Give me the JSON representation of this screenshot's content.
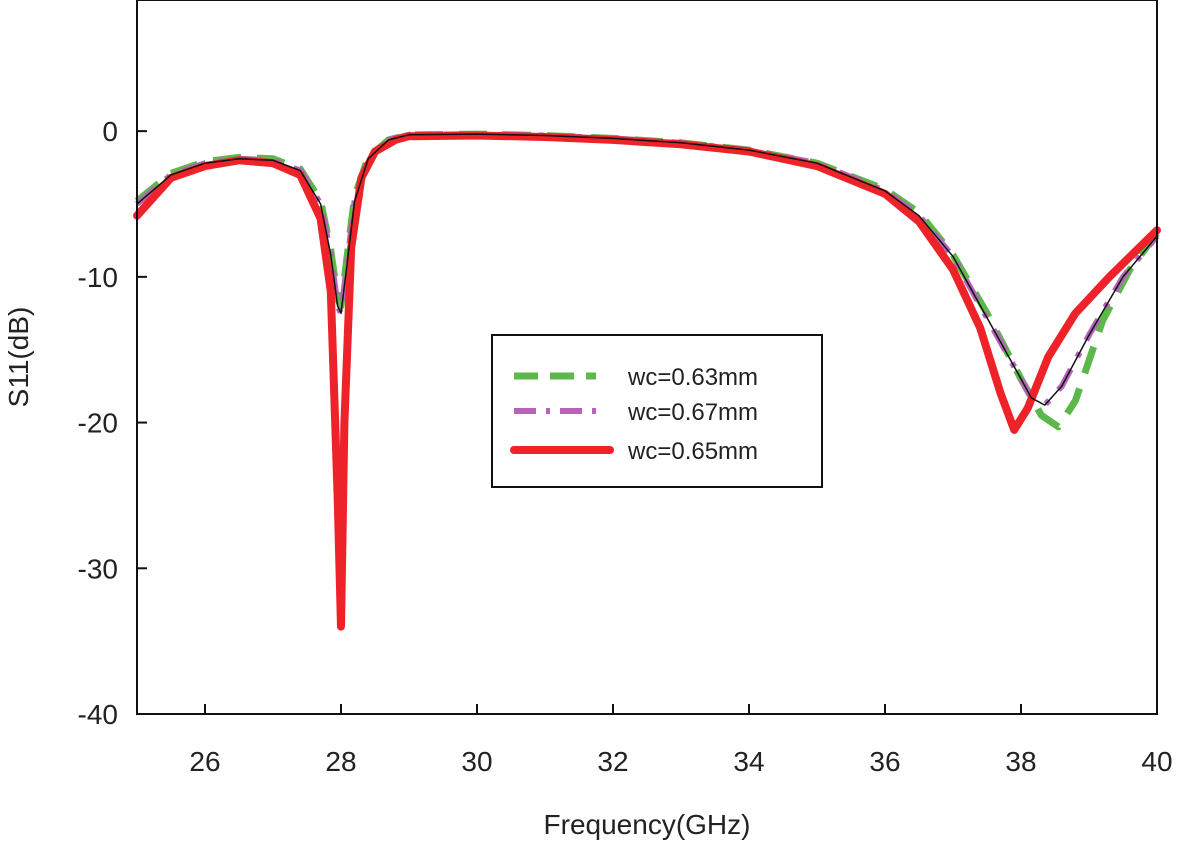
{
  "chart_data": {
    "type": "line",
    "title": "",
    "xlabel": "Frequency(GHz)",
    "ylabel": "S11(dB)",
    "xlim": [
      25,
      40
    ],
    "ylim": [
      -40,
      9
    ],
    "xticks": [
      26,
      28,
      30,
      32,
      34,
      36,
      38,
      40
    ],
    "yticks": [
      0,
      -10,
      -20,
      -30,
      -40
    ],
    "xtick_labels": [
      "26",
      "28",
      "30",
      "32",
      "34",
      "36",
      "38",
      "40"
    ],
    "ytick_labels": [
      "0",
      "-10",
      "-20",
      "-30",
      "-40"
    ],
    "grid": false,
    "legend_position": "center",
    "series": [
      {
        "name": "wc=0.63mm",
        "color": "#5cb84a",
        "style": "dashed",
        "points": [
          [
            25,
            -4.8
          ],
          [
            25.5,
            -2.9
          ],
          [
            26,
            -2.1
          ],
          [
            26.5,
            -1.8
          ],
          [
            27,
            -1.9
          ],
          [
            27.4,
            -2.6
          ],
          [
            27.7,
            -4.8
          ],
          [
            27.85,
            -8.2
          ],
          [
            27.95,
            -11.5
          ],
          [
            28.0,
            -12
          ],
          [
            28.08,
            -9
          ],
          [
            28.2,
            -4.5
          ],
          [
            28.4,
            -1.8
          ],
          [
            28.7,
            -0.6
          ],
          [
            29,
            -0.25
          ],
          [
            30,
            -0.2
          ],
          [
            31,
            -0.3
          ],
          [
            32,
            -0.5
          ],
          [
            33,
            -0.8
          ],
          [
            34,
            -1.3
          ],
          [
            35,
            -2.2
          ],
          [
            36,
            -4.0
          ],
          [
            36.5,
            -5.6
          ],
          [
            37,
            -8.5
          ],
          [
            37.5,
            -12.5
          ],
          [
            38,
            -17
          ],
          [
            38.3,
            -19.5
          ],
          [
            38.55,
            -20.3
          ],
          [
            38.8,
            -18.5
          ],
          [
            39.2,
            -13
          ],
          [
            39.6,
            -9.5
          ],
          [
            40,
            -7
          ]
        ]
      },
      {
        "name": "wc=0.67mm",
        "color": "#b565b8",
        "style": "dash-dot",
        "points": [
          [
            25,
            -5
          ],
          [
            25.5,
            -3
          ],
          [
            26,
            -2.2
          ],
          [
            26.5,
            -1.9
          ],
          [
            27,
            -2.0
          ],
          [
            27.4,
            -2.7
          ],
          [
            27.7,
            -5
          ],
          [
            27.85,
            -8.5
          ],
          [
            27.95,
            -12
          ],
          [
            28.0,
            -12.5
          ],
          [
            28.08,
            -9.5
          ],
          [
            28.2,
            -4.8
          ],
          [
            28.4,
            -1.9
          ],
          [
            28.7,
            -0.6
          ],
          [
            29,
            -0.25
          ],
          [
            30,
            -0.2
          ],
          [
            31,
            -0.3
          ],
          [
            32,
            -0.5
          ],
          [
            33,
            -0.8
          ],
          [
            34,
            -1.3
          ],
          [
            35,
            -2.2
          ],
          [
            36,
            -4.1
          ],
          [
            36.5,
            -5.8
          ],
          [
            37,
            -8.6
          ],
          [
            37.5,
            -12.8
          ],
          [
            38,
            -17
          ],
          [
            38.15,
            -18.3
          ],
          [
            38.35,
            -18.8
          ],
          [
            38.6,
            -17.5
          ],
          [
            39,
            -14
          ],
          [
            39.5,
            -10
          ],
          [
            40,
            -7.2
          ]
        ]
      },
      {
        "name": "wc=0.65mm",
        "color": "#ee2229",
        "style": "solid",
        "points": [
          [
            25,
            -5.8
          ],
          [
            25.5,
            -3.2
          ],
          [
            26,
            -2.4
          ],
          [
            26.5,
            -2.0
          ],
          [
            27,
            -2.2
          ],
          [
            27.4,
            -3
          ],
          [
            27.7,
            -6
          ],
          [
            27.85,
            -11
          ],
          [
            27.95,
            -25
          ],
          [
            28.0,
            -34
          ],
          [
            28.05,
            -20
          ],
          [
            28.15,
            -8
          ],
          [
            28.3,
            -3.2
          ],
          [
            28.5,
            -1.4
          ],
          [
            28.8,
            -0.6
          ],
          [
            29,
            -0.35
          ],
          [
            30,
            -0.3
          ],
          [
            31,
            -0.4
          ],
          [
            32,
            -0.6
          ],
          [
            33,
            -0.9
          ],
          [
            34,
            -1.4
          ],
          [
            35,
            -2.4
          ],
          [
            36,
            -4.3
          ],
          [
            36.5,
            -6.2
          ],
          [
            37,
            -9.5
          ],
          [
            37.4,
            -13.5
          ],
          [
            37.7,
            -18
          ],
          [
            37.9,
            -20.5
          ],
          [
            38.1,
            -19
          ],
          [
            38.4,
            -15.5
          ],
          [
            38.8,
            -12.5
          ],
          [
            39.3,
            -10
          ],
          [
            40,
            -6.8
          ]
        ]
      }
    ]
  }
}
